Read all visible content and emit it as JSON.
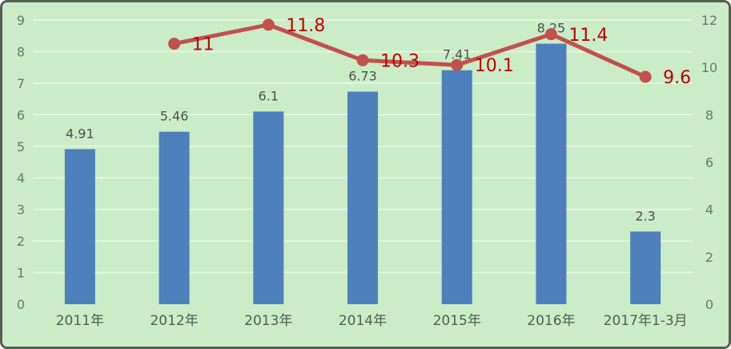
{
  "chart_data": {
    "type": "bar",
    "subtype": "bar-and-line-dual-axis",
    "title": "",
    "legend": "none",
    "grid": true,
    "categories": [
      "2011年",
      "2012年",
      "2013年",
      "2014年",
      "2015年",
      "2016年",
      "2017年1-3月"
    ],
    "series": [
      {
        "type": "bar",
        "axis": "left",
        "values": [
          4.91,
          5.46,
          6.1,
          6.73,
          7.41,
          8.25,
          2.3
        ],
        "labels": [
          "4.91",
          "5.46",
          "6.1",
          "6.73",
          "7.41",
          "8.25",
          "2.3"
        ]
      },
      {
        "type": "line",
        "axis": "right",
        "values": [
          null,
          11,
          11.8,
          10.3,
          10.1,
          11.4,
          9.6
        ],
        "labels": [
          null,
          "11",
          "11.8",
          "10.3",
          "10.1",
          "11.4",
          "9.6"
        ]
      }
    ],
    "axes": {
      "left": {
        "min": 0,
        "max": 9,
        "step": 1,
        "ticks": [
          "0",
          "1",
          "2",
          "3",
          "4",
          "5",
          "6",
          "7",
          "8",
          "9"
        ]
      },
      "right": {
        "min": 0,
        "max": 12,
        "step": 2,
        "ticks": [
          "0",
          "2",
          "4",
          "6",
          "8",
          "10",
          "12"
        ]
      }
    },
    "colors": {
      "background": "#caecc6",
      "gridline": "rgba(255,255,255,0.45)",
      "border": "#575d52",
      "bar_fill": "#4e80bd",
      "line_stroke": "#c2504b",
      "bar_label": "#49534b",
      "line_label": "#c00000",
      "tick_label": "#68796a",
      "category_label": "#515e51"
    }
  }
}
